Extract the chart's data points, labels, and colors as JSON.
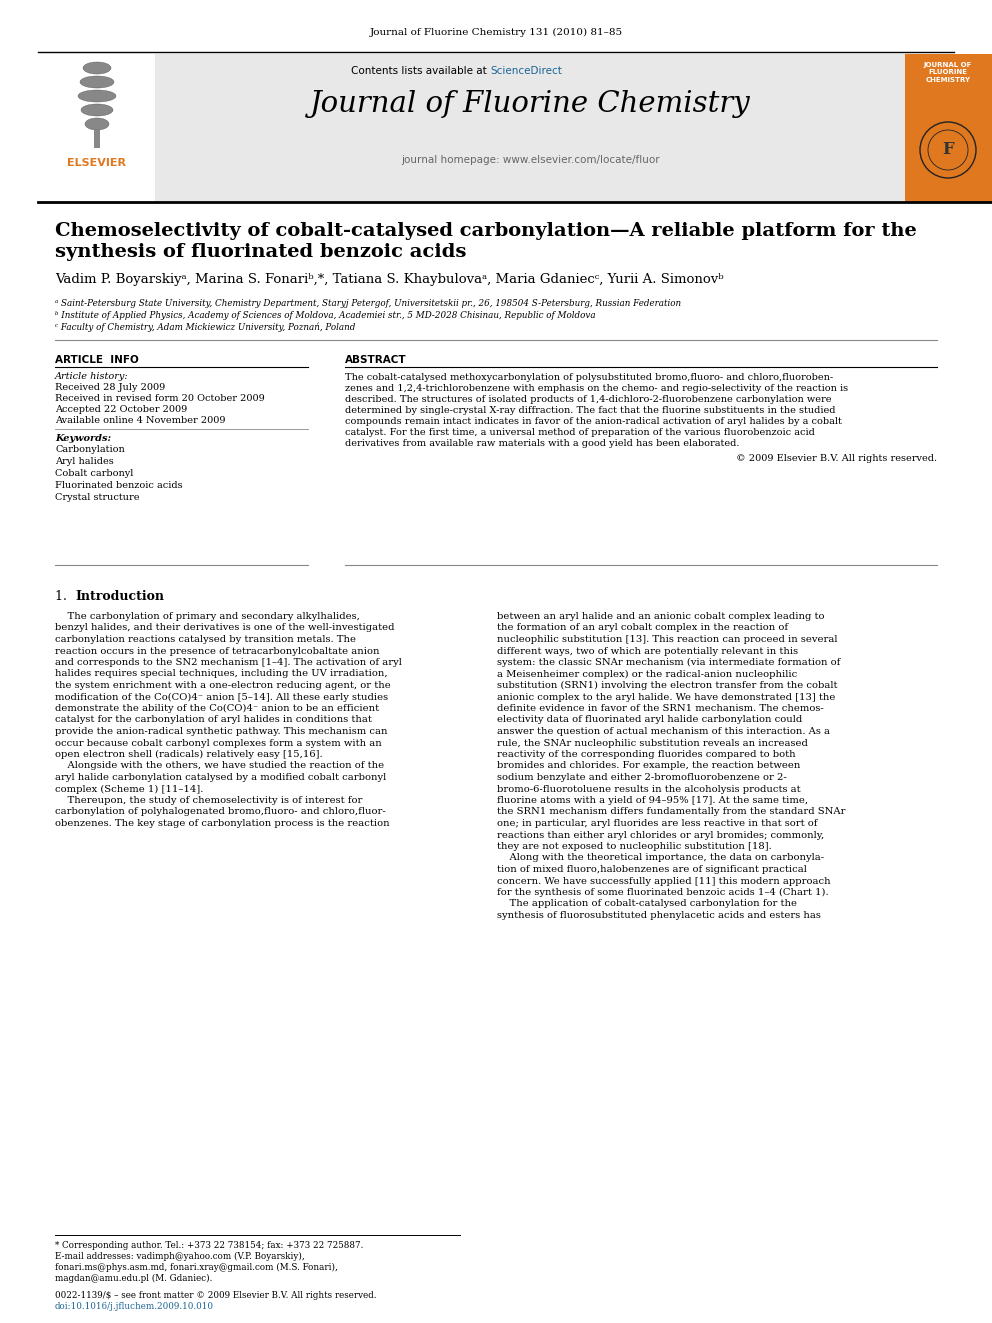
{
  "journal_header": "Journal of Fluorine Chemistry 131 (2010) 81–85",
  "contents_line": "Contents lists available at ScienceDirect",
  "sciencedirect_text": "ScienceDirect",
  "journal_name": "Journal of Fluorine Chemistry",
  "journal_homepage": "journal homepage: www.elsevier.com/locate/fluor",
  "title_line1": "Chemoselectivity of cobalt-catalysed carbonylation—A reliable platform for the",
  "title_line2": "synthesis of fluorinated benzoic acids",
  "author_line": "Vadim P. Boyarskiyᵃ, Marina S. Fonariᵇ,*, Tatiana S. Khaybulovaᵃ, Maria Gdaniecᶜ, Yurii A. Simonovᵇ",
  "affil_a": "ᵃ Saint-Petersburg State University, Chemistry Department, Staryj Petergof, Universitetskii pr., 26, 198504 S-Petersburg, Russian Federation",
  "affil_b": "ᵇ Institute of Applied Physics, Academy of Sciences of Moldova, Academiei str., 5 MD-2028 Chisinau, Republic of Moldova",
  "affil_c": "ᶜ Faculty of Chemistry, Adam Mickiewicz University, Poznań, Poland",
  "article_info_header": "ARTICLE  INFO",
  "article_history_header": "Article history:",
  "received": "Received 28 July 2009",
  "received_revised": "Received in revised form 20 October 2009",
  "accepted": "Accepted 22 October 2009",
  "available": "Available online 4 November 2009",
  "keywords_header": "Keywords:",
  "keywords": [
    "Carbonylation",
    "Aryl halides",
    "Cobalt carbonyl",
    "Fluorinated benzoic acids",
    "Crystal structure"
  ],
  "abstract_header": "ABSTRACT",
  "copyright": "© 2009 Elsevier B.V. All rights reserved.",
  "abstract_lines": [
    "The cobalt-catalysed methoxycarbonylation of polysubstituted bromo,fluoro- and chloro,fluoroben-",
    "zenes and 1,2,4-trichlorobenzene with emphasis on the chemo- and regio-selectivity of the reaction is",
    "described. The structures of isolated products of 1,4-dichloro-2-fluorobenzene carbonylation were",
    "determined by single-crystal X-ray diffraction. The fact that the fluorine substituents in the studied",
    "compounds remain intact indicates in favor of the anion-radical activation of aryl halides by a cobalt",
    "catalyst. For the first time, a universal method of preparation of the various fluorobenzoic acid",
    "derivatives from available raw materials with a good yield has been elaborated."
  ],
  "section1_num": "1.",
  "section1_title": "Introduction",
  "intro_col1_lines": [
    "    The carbonylation of primary and secondary alkylhalides,",
    "benzyl halides, and their derivatives is one of the well-investigated",
    "carbonylation reactions catalysed by transition metals. The",
    "reaction occurs in the presence of tetracarbonylcobaltate anion",
    "and corresponds to the SN2 mechanism [1–4]. The activation of aryl",
    "halides requires special techniques, including the UV irradiation,",
    "the system enrichment with a one-electron reducing agent, or the",
    "modification of the Co(CO)4⁻ anion [5–14]. All these early studies",
    "demonstrate the ability of the Co(CO)4⁻ anion to be an efficient",
    "catalyst for the carbonylation of aryl halides in conditions that",
    "provide the anion-radical synthetic pathway. This mechanism can",
    "occur because cobalt carbonyl complexes form a system with an",
    "open electron shell (radicals) relatively easy [15,16].",
    "    Alongside with the others, we have studied the reaction of the",
    "aryl halide carbonylation catalysed by a modified cobalt carbonyl",
    "complex (Scheme 1) [11–14].",
    "    Thereupon, the study of chemoselectivity is of interest for",
    "carbonylation of polyhalogenated bromo,fluoro- and chloro,fluor-",
    "obenzenes. The key stage of carbonylation process is the reaction"
  ],
  "intro_col2_lines": [
    "between an aryl halide and an anionic cobalt complex leading to",
    "the formation of an aryl cobalt complex in the reaction of",
    "nucleophilic substitution [13]. This reaction can proceed in several",
    "different ways, two of which are potentially relevant in this",
    "system: the classic SNAr mechanism (via intermediate formation of",
    "a Meisenheimer complex) or the radical-anion nucleophilic",
    "substitution (SRN1) involving the electron transfer from the cobalt",
    "anionic complex to the aryl halide. We have demonstrated [13] the",
    "definite evidence in favor of the SRN1 mechanism. The chemos-",
    "electivity data of fluorinated aryl halide carbonylation could",
    "answer the question of actual mechanism of this interaction. As a",
    "rule, the SNAr nucleophilic substitution reveals an increased",
    "reactivity of the corresponding fluorides compared to both",
    "bromides and chlorides. For example, the reaction between",
    "sodium benzylate and either 2-bromofluorobenzene or 2-",
    "bromo-6-fluorotoluene results in the alcoholysis products at",
    "fluorine atoms with a yield of 94–95% [17]. At the same time,",
    "the SRN1 mechanism differs fundamentally from the standard SNAr",
    "one; in particular, aryl fluorides are less reactive in that sort of",
    "reactions than either aryl chlorides or aryl bromides; commonly,",
    "they are not exposed to nucleophilic substitution [18].",
    "    Along with the theoretical importance, the data on carbonyla-",
    "tion of mixed fluoro,halobenzenes are of significant practical",
    "concern. We have successfully applied [11] this modern approach",
    "for the synthesis of some fluorinated benzoic acids 1–4 (Chart 1).",
    "    The application of cobalt-catalysed carbonylation for the",
    "synthesis of fluorosubstituted phenylacetic acids and esters has"
  ],
  "footnote_star": "* Corresponding author. Tel.: +373 22 738154; fax: +373 22 725887.",
  "footnote_email": "E-mail addresses: vadimph@yahoo.com (V.P. Boyarskiy),",
  "footnote_email2": "fonari.ms@phys.asm.md, fonari.xray@gmail.com (M.S. Fonari),",
  "footnote_email3": "magdan@amu.edu.pl (M. Gdaniec).",
  "issn_line": "0022-1139/$ – see front matter © 2009 Elsevier B.V. All rights reserved.",
  "doi_line": "doi:10.1016/j.jfluchem.2009.10.010",
  "bg_header_color": "#e8e8e8",
  "sciencedirect_color": "#1a6496",
  "orange_color": "#e07820",
  "link_color": "#1a6496",
  "black_color": "#000000",
  "gray_line_color": "#888888"
}
